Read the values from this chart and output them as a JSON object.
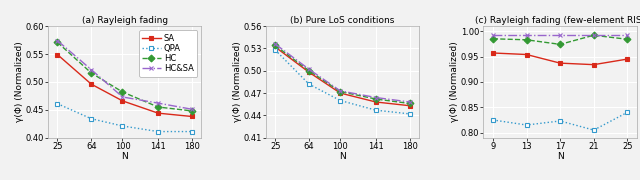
{
  "subplot1": {
    "title": "(a) Rayleigh fading",
    "xlabel": "N",
    "ylabel": "γ(Φ) (Normalized)",
    "ylim": [
      0.4,
      0.6
    ],
    "yticks": [
      0.4,
      0.45,
      0.5,
      0.55,
      0.6
    ],
    "xticks": [
      25,
      64,
      100,
      141,
      180
    ],
    "xticklabels": [
      "25",
      "64",
      "100",
      "141",
      "180"
    ],
    "SA": {
      "x": [
        25,
        64,
        100,
        141,
        180
      ],
      "y": [
        0.549,
        0.496,
        0.466,
        0.444,
        0.438
      ]
    },
    "QPA": {
      "x": [
        25,
        64,
        100,
        141,
        180
      ],
      "y": [
        0.461,
        0.434,
        0.421,
        0.411,
        0.411
      ]
    },
    "HC": {
      "x": [
        25,
        64,
        100,
        141,
        180
      ],
      "y": [
        0.571,
        0.516,
        0.482,
        0.455,
        0.448
      ]
    },
    "HC&SA": {
      "x": [
        25,
        64,
        100,
        141,
        180
      ],
      "y": [
        0.574,
        0.522,
        0.473,
        0.462,
        0.451
      ]
    }
  },
  "subplot2": {
    "title": "(b) Pure LoS conditions",
    "xlabel": "N",
    "ylabel": "γ(Φ) (Normalized)",
    "ylim": [
      0.41,
      0.56
    ],
    "yticks": [
      0.41,
      0.44,
      0.47,
      0.5,
      0.53,
      0.56
    ],
    "xticks": [
      25,
      64,
      100,
      141,
      180
    ],
    "xticklabels": [
      "25",
      "64",
      "100",
      "141",
      "180"
    ],
    "SA": {
      "x": [
        25,
        64,
        100,
        141,
        180
      ],
      "y": [
        0.532,
        0.498,
        0.47,
        0.458,
        0.453
      ]
    },
    "QPA": {
      "x": [
        25,
        64,
        100,
        141,
        180
      ],
      "y": [
        0.528,
        0.482,
        0.46,
        0.447,
        0.442
      ]
    },
    "HC": {
      "x": [
        25,
        64,
        100,
        141,
        180
      ],
      "y": [
        0.534,
        0.5,
        0.472,
        0.462,
        0.456
      ]
    },
    "HC&SA": {
      "x": [
        25,
        64,
        100,
        141,
        180
      ],
      "y": [
        0.536,
        0.502,
        0.473,
        0.464,
        0.458
      ]
    }
  },
  "subplot3": {
    "title": "(c) Rayleigh fading (few-element RIS)",
    "xlabel": "N",
    "ylabel": "γ(Φ) (Normalized)",
    "ylim": [
      0.79,
      1.01
    ],
    "yticks": [
      0.8,
      0.85,
      0.9,
      0.95,
      1.0
    ],
    "xticks": [
      9,
      13,
      17,
      21,
      25
    ],
    "xticklabels": [
      "9",
      "13",
      "17",
      "21",
      "25"
    ],
    "SA": {
      "x": [
        9,
        13,
        17,
        21,
        25
      ],
      "y": [
        0.957,
        0.954,
        0.937,
        0.934,
        0.945
      ]
    },
    "QPA": {
      "x": [
        9,
        13,
        17,
        21,
        25
      ],
      "y": [
        0.825,
        0.815,
        0.823,
        0.805,
        0.84
      ]
    },
    "HC": {
      "x": [
        9,
        13,
        17,
        21,
        25
      ],
      "y": [
        0.985,
        0.983,
        0.974,
        0.992,
        0.984
      ]
    },
    "HC&SA": {
      "x": [
        9,
        13,
        17,
        21,
        25
      ],
      "y": [
        0.993,
        0.993,
        0.993,
        0.993,
        0.993
      ]
    }
  },
  "series_styles": {
    "SA": {
      "color": "#d9291a",
      "marker": "s",
      "linestyle": "-",
      "mfc": "#d9291a"
    },
    "QPA": {
      "color": "#3399cc",
      "marker": "s",
      "linestyle": ":",
      "mfc": "white"
    },
    "HC": {
      "color": "#339933",
      "marker": "D",
      "linestyle": "--",
      "mfc": "#339933"
    },
    "HC&SA": {
      "color": "#9966cc",
      "marker": "x",
      "linestyle": "-.",
      "mfc": "#9966cc"
    }
  },
  "legend_labels": [
    "SA",
    "QPA",
    "HC",
    "HC&SA"
  ],
  "plot_bg": "#f2f2f2",
  "fig_bg": "#f2f2f2",
  "grid_color": "white",
  "title_fontsize": 6.5,
  "label_fontsize": 6.5,
  "tick_fontsize": 6,
  "legend_fontsize": 6,
  "marker_size": 3.5,
  "linewidth": 1.0
}
